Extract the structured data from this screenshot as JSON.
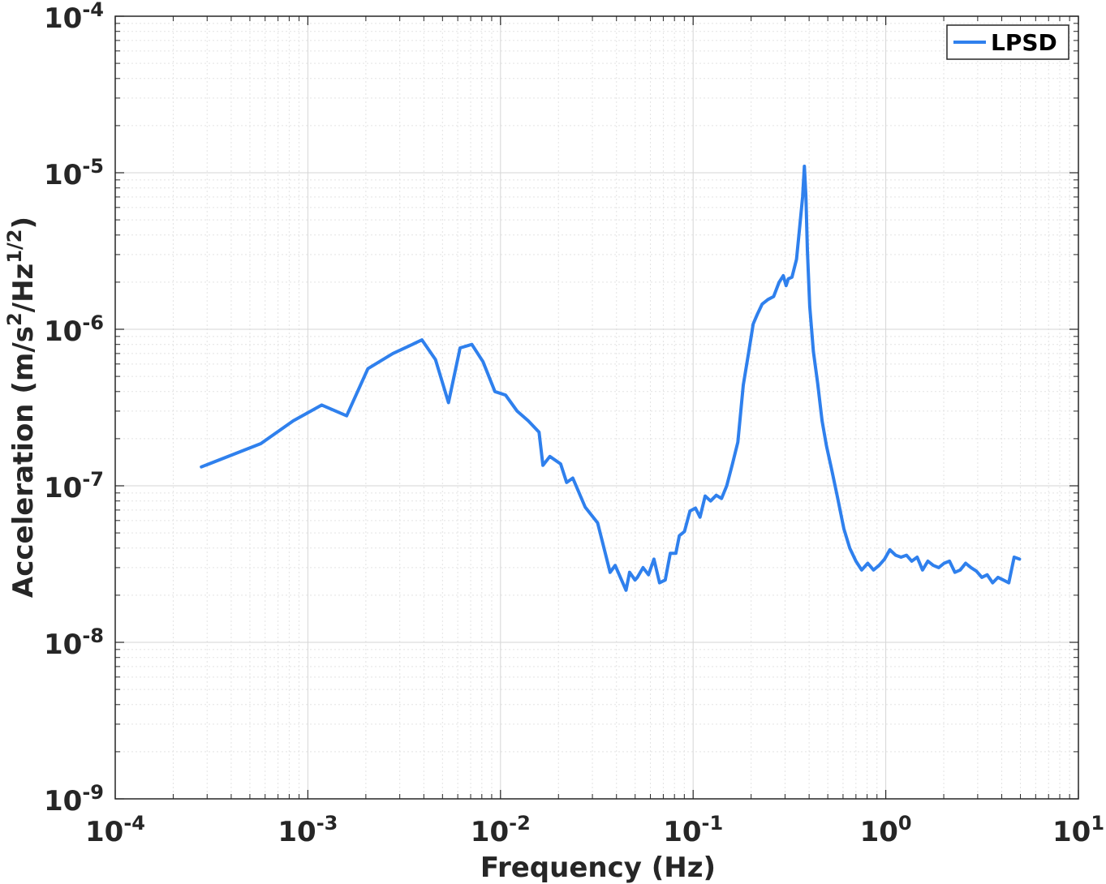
{
  "chart_data": {
    "type": "line",
    "xscale": "log",
    "yscale": "log",
    "xlim": [
      0.0001,
      10
    ],
    "ylim": [
      1e-09,
      0.0001
    ],
    "grid": true,
    "minor_grid": true,
    "legend_position": "top-right",
    "line_color": "#2f80ed",
    "xlabel": "Frequency (Hz)",
    "ylabel": {
      "base": "Acceleration (m/s",
      "sup1": "2",
      "mid": "/Hz",
      "sup2": "1/2",
      "end": ")"
    },
    "x_ticks": [
      {
        "value": 0.0001,
        "base": "10",
        "exp": "-4"
      },
      {
        "value": 0.001,
        "base": "10",
        "exp": "-3"
      },
      {
        "value": 0.01,
        "base": "10",
        "exp": "-2"
      },
      {
        "value": 0.1,
        "base": "10",
        "exp": "-1"
      },
      {
        "value": 1,
        "base": "10",
        "exp": "0"
      },
      {
        "value": 10,
        "base": "10",
        "exp": "1"
      }
    ],
    "y_ticks": [
      {
        "value": 1e-09,
        "base": "10",
        "exp": "-9"
      },
      {
        "value": 1e-08,
        "base": "10",
        "exp": "-8"
      },
      {
        "value": 1e-07,
        "base": "10",
        "exp": "-7"
      },
      {
        "value": 1e-06,
        "base": "10",
        "exp": "-6"
      },
      {
        "value": 1e-05,
        "base": "10",
        "exp": "-5"
      },
      {
        "value": 0.0001,
        "base": "10",
        "exp": "-4"
      }
    ],
    "series": [
      {
        "name": "LPSD",
        "x": [
          0.00028,
          0.00057,
          0.00084,
          0.00118,
          0.00159,
          0.00205,
          0.00276,
          0.00334,
          0.00391,
          0.0046,
          0.00537,
          0.00617,
          0.0071,
          0.00812,
          0.00935,
          0.01062,
          0.0122,
          0.01393,
          0.01585,
          0.0166,
          0.01803,
          0.02051,
          0.02205,
          0.02374,
          0.02752,
          0.03194,
          0.03706,
          0.03939,
          0.04484,
          0.04681,
          0.04993,
          0.05134,
          0.05496,
          0.05867,
          0.06262,
          0.06695,
          0.07164,
          0.07606,
          0.0813,
          0.08483,
          0.0901,
          0.0963,
          0.1029,
          0.1086,
          0.1154,
          0.1232,
          0.1318,
          0.1404,
          0.1494,
          0.1597,
          0.1707,
          0.1821,
          0.1946,
          0.205,
          0.2155,
          0.2282,
          0.2445,
          0.2617,
          0.2797,
          0.2937,
          0.304,
          0.312,
          0.326,
          0.344,
          0.358,
          0.37,
          0.378,
          0.385,
          0.392,
          0.403,
          0.421,
          0.443,
          0.467,
          0.492,
          0.525,
          0.561,
          0.606,
          0.65,
          0.7,
          0.75,
          0.806,
          0.864,
          0.923,
          0.986,
          1.05,
          1.126,
          1.2,
          1.28,
          1.364,
          1.455,
          1.552,
          1.655,
          1.765,
          1.883,
          2.008,
          2.142,
          2.284,
          2.436,
          2.598,
          2.771,
          2.956,
          3.152,
          3.362,
          3.586,
          3.824,
          4.078,
          4.349,
          4.638,
          4.947
        ],
        "y": [
          1.32e-07,
          1.86e-07,
          2.6e-07,
          3.28e-07,
          2.8e-07,
          5.6e-07,
          7e-07,
          7.8e-07,
          8.55e-07,
          6.4e-07,
          3.4e-07,
          7.6e-07,
          8e-07,
          6.2e-07,
          4e-07,
          3.8e-07,
          3e-07,
          2.6e-07,
          2.2e-07,
          1.35e-07,
          1.54e-07,
          1.38e-07,
          1.05e-07,
          1.12e-07,
          7.3e-08,
          5.8e-08,
          2.8e-08,
          3.1e-08,
          2.15e-08,
          2.8e-08,
          2.5e-08,
          2.6e-08,
          3e-08,
          2.7e-08,
          3.4e-08,
          2.4e-08,
          2.5e-08,
          3.7e-08,
          3.7e-08,
          4.8e-08,
          5.1e-08,
          6.9e-08,
          7.2e-08,
          6.3e-08,
          8.6e-08,
          8e-08,
          8.7e-08,
          8.3e-08,
          1e-07,
          1.37e-07,
          1.9e-07,
          4.4e-07,
          7.2e-07,
          1.08e-06,
          1.25e-06,
          1.45e-06,
          1.55e-06,
          1.62e-06,
          2e-06,
          2.2e-06,
          1.9e-06,
          2.1e-06,
          2.15e-06,
          2.8e-06,
          4.6e-06,
          7e-06,
          1.1e-05,
          7e-06,
          3.2e-06,
          1.4e-06,
          7.2e-07,
          4.5e-07,
          2.6e-07,
          1.8e-07,
          1.25e-07,
          8.5e-08,
          5.3e-08,
          4e-08,
          3.3e-08,
          2.9e-08,
          3.2e-08,
          2.9e-08,
          3.1e-08,
          3.4e-08,
          3.9e-08,
          3.6e-08,
          3.5e-08,
          3.6e-08,
          3.3e-08,
          3.5e-08,
          2.9e-08,
          3.3e-08,
          3.1e-08,
          3e-08,
          3.2e-08,
          3.3e-08,
          2.8e-08,
          2.9e-08,
          3.2e-08,
          3e-08,
          2.85e-08,
          2.6e-08,
          2.7e-08,
          2.4e-08,
          2.6e-08,
          2.5e-08,
          2.4e-08,
          3.5e-08,
          3.4e-08
        ]
      }
    ]
  }
}
